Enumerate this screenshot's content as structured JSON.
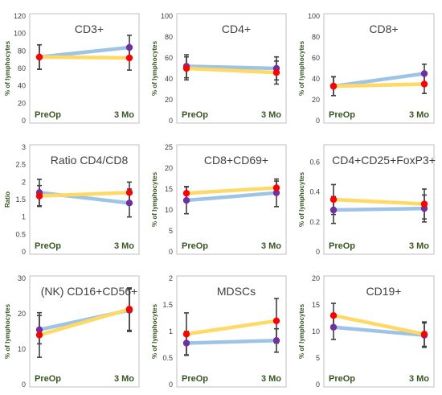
{
  "colors": {
    "blue_series": "#9dc3e6",
    "yellow_series": "#ffd966",
    "blue_marker": "#7030a0",
    "yellow_marker": "#ff0000",
    "error_bar": "#404040",
    "frame": "#bfbfbf",
    "label_green": "#375623",
    "tick_text": "#404040"
  },
  "chart_data": [
    {
      "type": "line",
      "title": "CD3+",
      "ylabel": "% of lymphocytes",
      "categories": [
        "PreOp",
        "3 Mo"
      ],
      "ylim": [
        0,
        120
      ],
      "yticks": [
        "0",
        "20",
        "40",
        "60",
        "80",
        "100",
        "120"
      ],
      "series": [
        {
          "values": [
            73,
            84
          ],
          "err": [
            14,
            14
          ],
          "color": "blue"
        },
        {
          "values": [
            73,
            72
          ],
          "err": [
            14,
            14
          ],
          "color": "yellow"
        }
      ]
    },
    {
      "type": "line",
      "title": "CD4+",
      "ylabel": "% of lymphocytes",
      "categories": [
        "PreOp",
        "3 Mo"
      ],
      "ylim": [
        0,
        100
      ],
      "yticks": [
        "0",
        "20",
        "40",
        "60",
        "80",
        "100"
      ],
      "series": [
        {
          "values": [
            52,
            50
          ],
          "err": [
            11,
            11
          ],
          "color": "blue"
        },
        {
          "values": [
            50,
            46
          ],
          "err": [
            11,
            11
          ],
          "color": "yellow"
        }
      ]
    },
    {
      "type": "line",
      "title": "CD8+",
      "ylabel": "% of lymphocytes",
      "categories": [
        "PreOp",
        "3 Mo"
      ],
      "ylim": [
        0,
        100
      ],
      "yticks": [
        "0",
        "20",
        "40",
        "60",
        "80",
        "100"
      ],
      "series": [
        {
          "values": [
            33,
            45
          ],
          "err": [
            9,
            9
          ],
          "color": "blue"
        },
        {
          "values": [
            33,
            35
          ],
          "err": [
            9,
            9
          ],
          "color": "yellow"
        }
      ]
    },
    {
      "type": "line",
      "title": "Ratio CD4/CD8",
      "ylabel": "Ratio",
      "categories": [
        "PreOp",
        "3 Mo"
      ],
      "ylim": [
        0,
        3
      ],
      "yticks": [
        "0",
        "0.5",
        "1",
        "1.5",
        "2",
        "2.5",
        "3"
      ],
      "series": [
        {
          "values": [
            1.7,
            1.4
          ],
          "err": [
            0.38,
            0.4
          ],
          "color": "blue"
        },
        {
          "values": [
            1.6,
            1.7
          ],
          "err": [
            0.3,
            0.3
          ],
          "color": "yellow"
        }
      ]
    },
    {
      "type": "line",
      "title": "CD8+CD69+",
      "ylabel": "% of lymphocytes",
      "categories": [
        "PreOp",
        "3 Mo"
      ],
      "ylim": [
        0,
        25
      ],
      "yticks": [
        "0",
        "5",
        "10",
        "15",
        "20",
        "25"
      ],
      "series": [
        {
          "values": [
            12.3,
            14.1
          ],
          "err": [
            3.2,
            3.3
          ],
          "color": "blue"
        },
        {
          "values": [
            14,
            15.3
          ],
          "err": [
            1.6,
            1.6
          ],
          "color": "yellow"
        }
      ]
    },
    {
      "type": "line",
      "title": "CD4+CD25+FoxP3+",
      "ylabel": "% of lymphocytes",
      "categories": [
        "PreOp",
        "3 Mo"
      ],
      "ylim": [
        0,
        0.7
      ],
      "yticks": [
        "0",
        "0.2",
        "0.4",
        "0.6"
      ],
      "series": [
        {
          "values": [
            0.28,
            0.29
          ],
          "err": [
            0.09,
            0.09
          ],
          "color": "blue"
        },
        {
          "values": [
            0.35,
            0.32
          ],
          "err": [
            0.1,
            0.1
          ],
          "color": "yellow"
        }
      ]
    },
    {
      "type": "line",
      "title": "(NK) CD16+CD56+",
      "ylabel": "% of lymphocytes",
      "categories": [
        "PreOp",
        "3 Mo"
      ],
      "ylim": [
        0,
        30
      ],
      "yticks": [
        "0",
        "10",
        "20",
        "30"
      ],
      "series": [
        {
          "values": [
            15.5,
            21
          ],
          "err": [
            4,
            6
          ],
          "color": "blue"
        },
        {
          "values": [
            14,
            21.3
          ],
          "err": [
            6.3,
            6
          ],
          "color": "yellow"
        }
      ]
    },
    {
      "type": "line",
      "title": "MDSCs",
      "ylabel": "% of lymphocytes",
      "categories": [
        "PreOp",
        "3 Mo"
      ],
      "ylim": [
        0,
        2
      ],
      "yticks": [
        "0",
        "0.5",
        "1",
        "1.5",
        "2"
      ],
      "series": [
        {
          "values": [
            0.78,
            0.83
          ],
          "err": [
            0.22,
            0.22
          ],
          "color": "blue"
        },
        {
          "values": [
            0.95,
            1.2
          ],
          "err": [
            0.4,
            0.42
          ],
          "color": "yellow"
        }
      ]
    },
    {
      "type": "line",
      "title": "CD19+",
      "ylabel": "% of lymphocytes",
      "categories": [
        "PreOp",
        "3 Mo"
      ],
      "ylim": [
        0,
        20
      ],
      "yticks": [
        "0",
        "5",
        "10",
        "15",
        "20"
      ],
      "series": [
        {
          "values": [
            10.8,
            9.3
          ],
          "err": [
            2.3,
            2.3
          ],
          "color": "blue"
        },
        {
          "values": [
            13,
            9.5
          ],
          "err": [
            2.3,
            2.3
          ],
          "color": "yellow"
        }
      ]
    }
  ]
}
